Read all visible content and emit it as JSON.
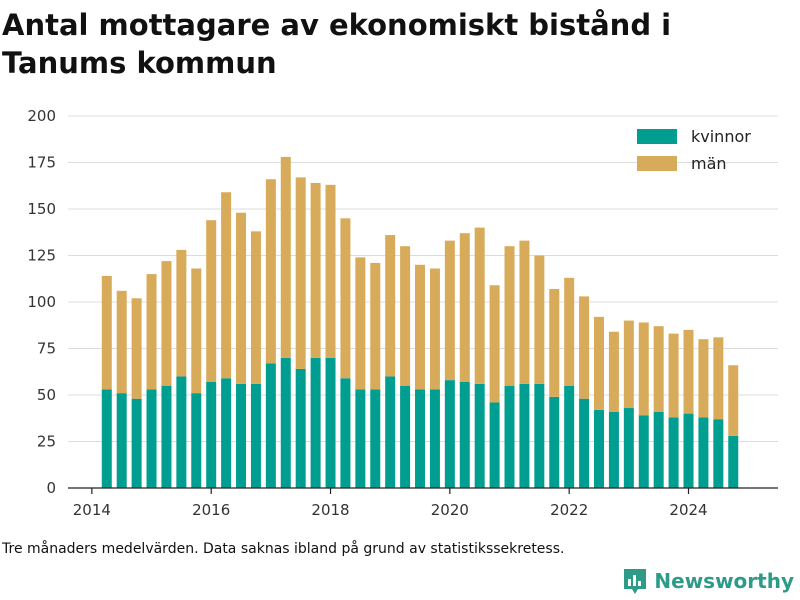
{
  "chart_data": {
    "type": "bar",
    "stacked": true,
    "title": "Antal mottagare av ekonomiskt bistånd i Tanums kommun",
    "xlabel": "",
    "ylabel": "",
    "ylim": [
      0,
      200
    ],
    "y_ticks": [
      "0",
      "25",
      "50",
      "75",
      "100",
      "125",
      "150",
      "175",
      "200"
    ],
    "x_range": [
      2013.6,
      2025.5
    ],
    "x_ticks": [
      "2014",
      "2016",
      "2018",
      "2020",
      "2022",
      "2024"
    ],
    "grid": true,
    "legend_position": "top-right",
    "colors": {
      "kvinnor": "#009e91",
      "man": "#d8ab5a"
    },
    "x": [
      "2014-04",
      "2014-07",
      "2014-10",
      "2015-01",
      "2015-04",
      "2015-07",
      "2015-10",
      "2016-01",
      "2016-04",
      "2016-07",
      "2016-10",
      "2017-01",
      "2017-04",
      "2017-07",
      "2017-10",
      "2018-01",
      "2018-04",
      "2018-07",
      "2018-10",
      "2019-01",
      "2019-04",
      "2019-07",
      "2019-10",
      "2020-01",
      "2020-04",
      "2020-07",
      "2020-10",
      "2021-01",
      "2021-04",
      "2021-07",
      "2021-10",
      "2022-01",
      "2022-04",
      "2022-07",
      "2022-10",
      "2023-01",
      "2023-04",
      "2023-07",
      "2023-10",
      "2024-01",
      "2024-04",
      "2024-07",
      "2024-10"
    ],
    "series": [
      {
        "name": "kvinnor",
        "values": [
          53,
          51,
          48,
          53,
          55,
          60,
          51,
          57,
          59,
          56,
          56,
          67,
          70,
          64,
          70,
          70,
          59,
          53,
          53,
          60,
          55,
          53,
          53,
          58,
          57,
          56,
          46,
          55,
          56,
          56,
          49,
          55,
          48,
          42,
          41,
          43,
          39,
          41,
          38,
          40,
          38,
          37,
          28
        ]
      },
      {
        "name": "män",
        "values": [
          61,
          55,
          54,
          62,
          67,
          68,
          67,
          87,
          100,
          92,
          82,
          99,
          108,
          103,
          94,
          93,
          86,
          71,
          68,
          76,
          75,
          67,
          65,
          75,
          80,
          84,
          63,
          75,
          77,
          69,
          58,
          58,
          55,
          50,
          43,
          47,
          50,
          46,
          45,
          45,
          42,
          44,
          38
        ]
      }
    ]
  },
  "footnote": "Tre månaders medelvärden. Data saknas ibland på grund av statistikssekretess.",
  "brand": {
    "name": "Newsworthy",
    "icon": "bar-chart-logo-icon"
  }
}
